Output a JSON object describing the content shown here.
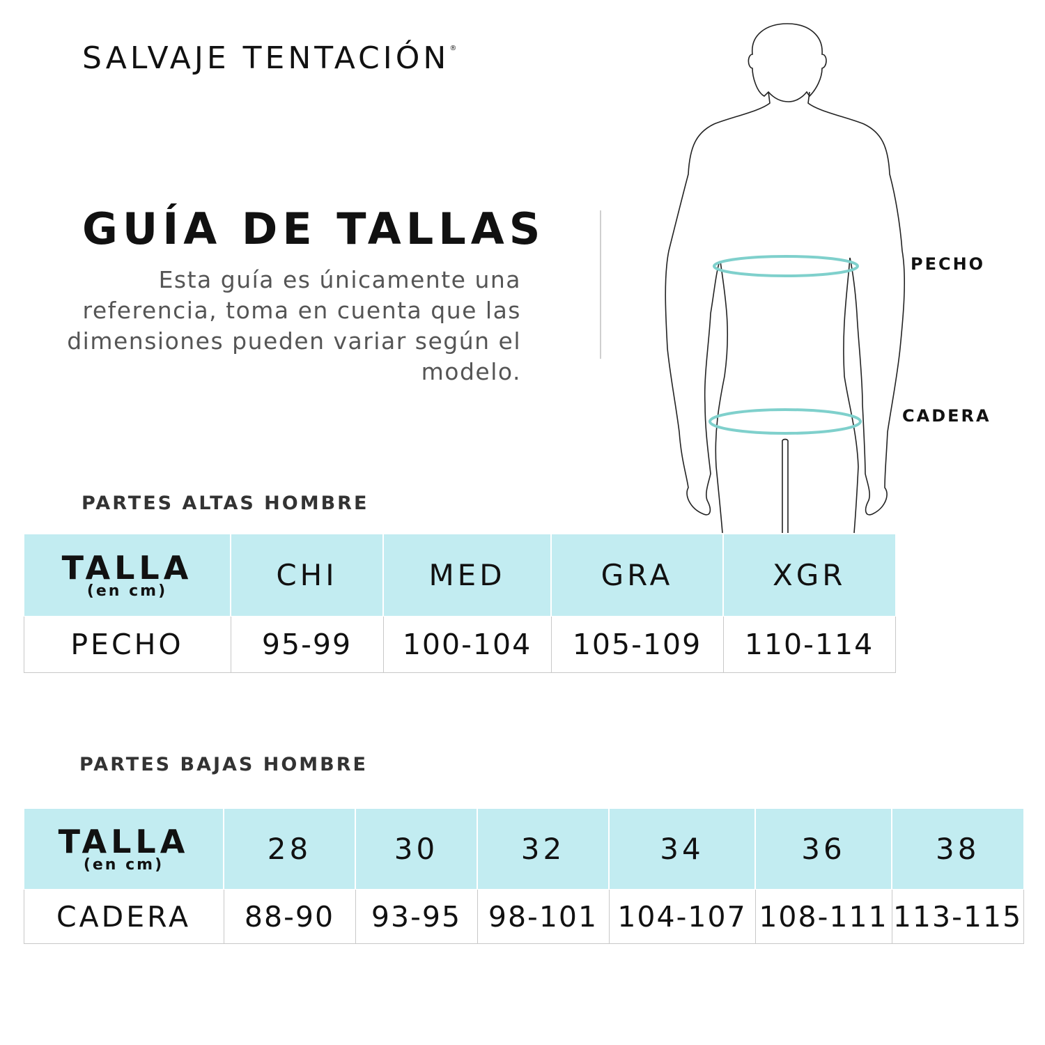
{
  "brand": {
    "name": "SALVAJE TENTACIÓN",
    "registered_mark": "®"
  },
  "title": "GUÍA DE TALLAS",
  "description": "Esta guía es únicamente una referencia, toma en cuenta que las dimensiones pueden variar según el modelo.",
  "figure": {
    "chest_label": "PECHO",
    "hip_label": "CADERA",
    "ring_color": "#7fd0cc"
  },
  "colors": {
    "header_bg": "#c2ecf1"
  },
  "upper_table": {
    "section": "PARTES ALTAS HOMBRE",
    "header_label": "TALLA",
    "header_unit": "(en cm)",
    "sizes": [
      "CHI",
      "MED",
      "GRA",
      "XGR"
    ],
    "row_label": "PECHO",
    "values": [
      "95-99",
      "100-104",
      "105-109",
      "110-114"
    ]
  },
  "lower_table": {
    "section": "PARTES BAJAS HOMBRE",
    "header_label": "TALLA",
    "header_unit": "(en cm)",
    "sizes": [
      "28",
      "30",
      "32",
      "34",
      "36",
      "38"
    ],
    "row_label": "CADERA",
    "values": [
      "88-90",
      "93-95",
      "98-101",
      "104-107",
      "108-111",
      "113-115"
    ]
  }
}
